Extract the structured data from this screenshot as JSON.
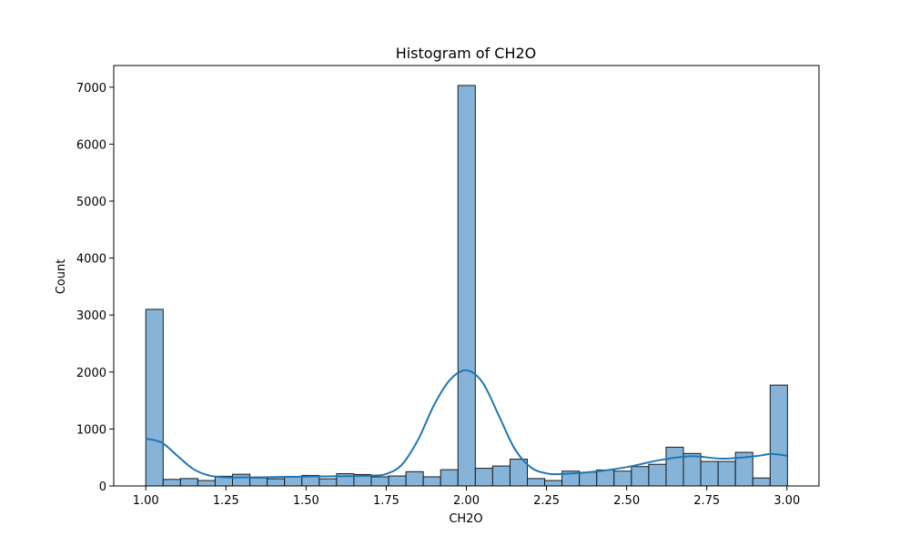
{
  "chart_data": {
    "type": "bar",
    "title": "Histogram of CH2O",
    "xlabel": "CH2O",
    "ylabel": "Count",
    "xlim": [
      0.9,
      3.1
    ],
    "ylim": [
      0,
      7380
    ],
    "xticks": [
      1.0,
      1.25,
      1.5,
      1.75,
      2.0,
      2.25,
      2.5,
      2.75,
      3.0
    ],
    "xtick_labels": [
      "1.00",
      "1.25",
      "1.50",
      "1.75",
      "2.00",
      "2.25",
      "2.50",
      "2.75",
      "3.00"
    ],
    "yticks": [
      0,
      1000,
      2000,
      3000,
      4000,
      5000,
      6000,
      7000
    ],
    "ytick_labels": [
      "0",
      "1000",
      "2000",
      "3000",
      "4000",
      "5000",
      "6000",
      "7000"
    ],
    "grid": false,
    "bin_start": 1.0,
    "bin_width": 0.0541,
    "values": [
      3100,
      115,
      130,
      95,
      170,
      205,
      140,
      125,
      165,
      185,
      125,
      215,
      200,
      160,
      175,
      250,
      160,
      285,
      7030,
      310,
      350,
      470,
      130,
      95,
      260,
      240,
      280,
      260,
      340,
      380,
      680,
      570,
      430,
      430,
      590,
      140,
      1770
    ],
    "kde": {
      "x": [
        1.0,
        1.05,
        1.1,
        1.15,
        1.2,
        1.25,
        1.3,
        1.4,
        1.5,
        1.6,
        1.7,
        1.75,
        1.8,
        1.85,
        1.9,
        1.95,
        2.0,
        2.05,
        2.1,
        2.15,
        2.2,
        2.25,
        2.3,
        2.4,
        2.5,
        2.6,
        2.7,
        2.8,
        2.9,
        2.95,
        3.0
      ],
      "y": [
        830,
        760,
        520,
        290,
        180,
        150,
        150,
        155,
        165,
        170,
        180,
        210,
        380,
        820,
        1430,
        1870,
        2030,
        1820,
        1250,
        660,
        330,
        220,
        210,
        250,
        330,
        450,
        520,
        480,
        520,
        560,
        530
      ]
    },
    "colors": {
      "bar_fill": "#86b4d9",
      "bar_edge": "#1a1a1a",
      "kde_line": "#1f77b4"
    }
  }
}
